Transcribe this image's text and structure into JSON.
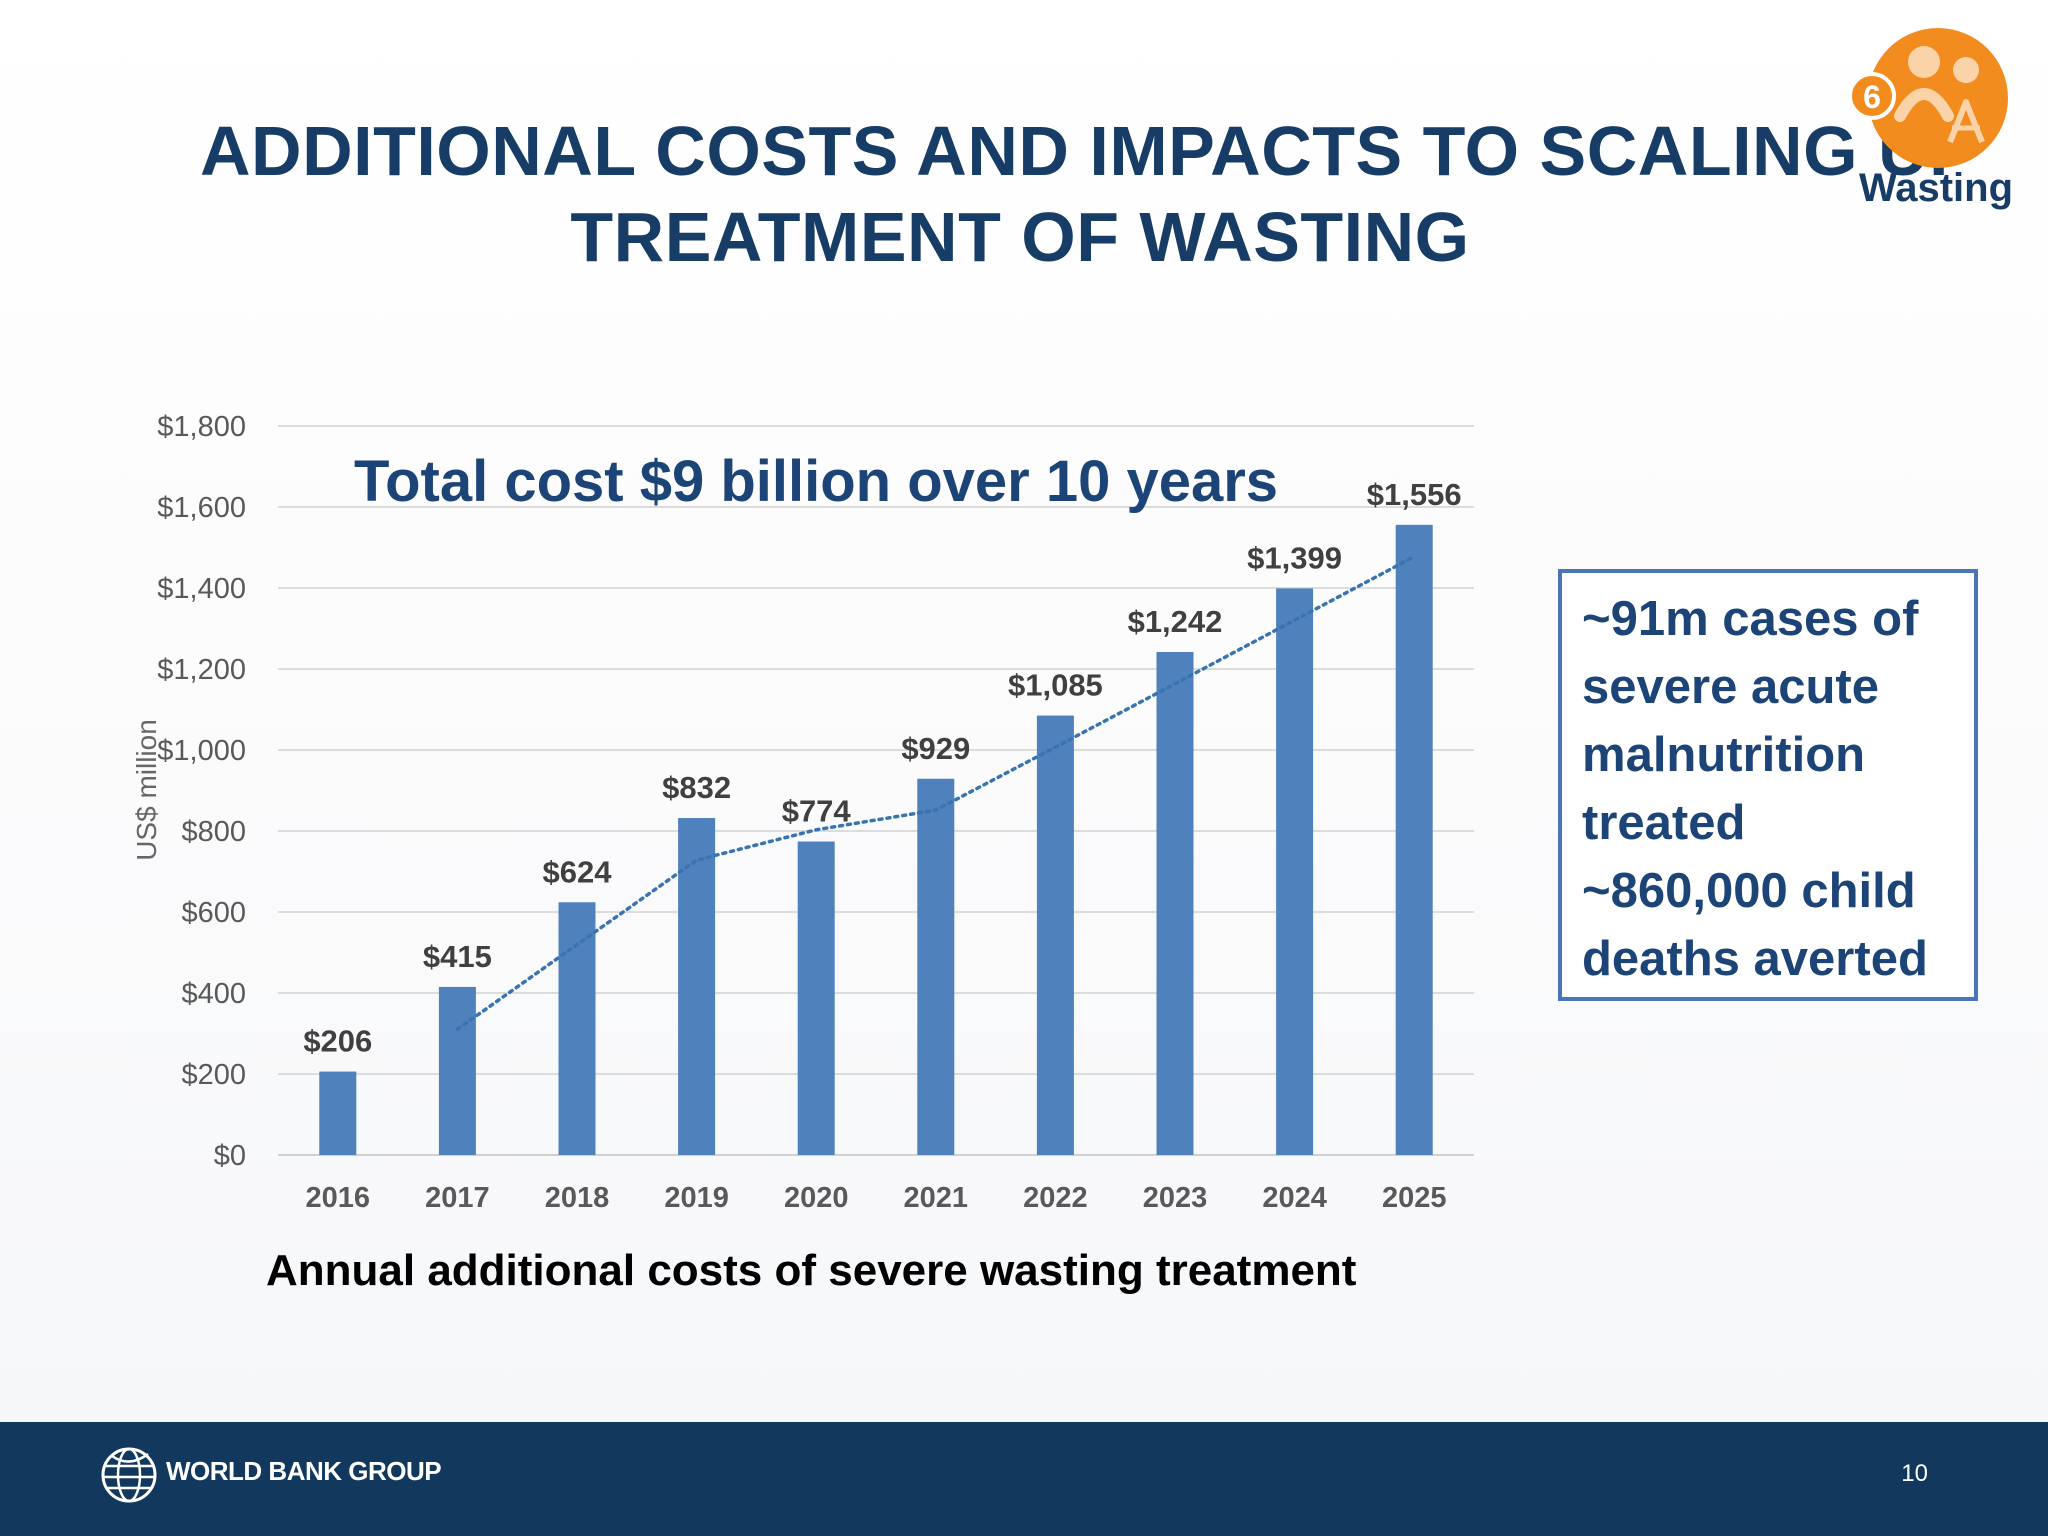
{
  "slide": {
    "title_line1": "ADDITIONAL COSTS AND IMPACTS TO SCALING UP",
    "title_line2": "TREATMENT OF WASTING",
    "badge_number": "6",
    "badge_label": "Wasting",
    "callout_lines": [
      "~91m cases of",
      "severe acute",
      "malnutrition",
      "treated",
      "~860,000 child",
      "deaths averted"
    ],
    "footer_org": "WORLD BANK GROUP",
    "page_number": "10"
  },
  "colors": {
    "title": "#173d66",
    "bar": "#4f81bd",
    "trendline": "#3a74b0",
    "footer": "#12385e",
    "badge": "#f28c1f"
  },
  "chart_data": {
    "type": "bar",
    "title": "Total cost $9 billion over 10 years",
    "xlabel": "Annual additional costs of severe wasting treatment",
    "ylabel": "US$ million",
    "categories": [
      "2016",
      "2017",
      "2018",
      "2019",
      "2020",
      "2021",
      "2022",
      "2023",
      "2024",
      "2025"
    ],
    "values": [
      206,
      415,
      624,
      832,
      774,
      929,
      1085,
      1242,
      1399,
      1556
    ],
    "data_labels": [
      "$206",
      "$415",
      "$624",
      "$832",
      "$774",
      "$929",
      "$1,085",
      "$1,242",
      "$1,399",
      "$1,556"
    ],
    "ylim": [
      0,
      1800
    ],
    "yticks": [
      0,
      200,
      400,
      600,
      800,
      1000,
      1200,
      1400,
      1600,
      1800
    ],
    "ytick_labels": [
      "$0",
      "$200",
      "$400",
      "$600",
      "$800",
      "$1,000",
      "$1,200",
      "$1,400",
      "$1,600",
      "$1,800"
    ],
    "trendline": {
      "style": "dotted",
      "type": "moving average",
      "start_category": "2017",
      "end_category": "2025"
    },
    "grid": true
  }
}
